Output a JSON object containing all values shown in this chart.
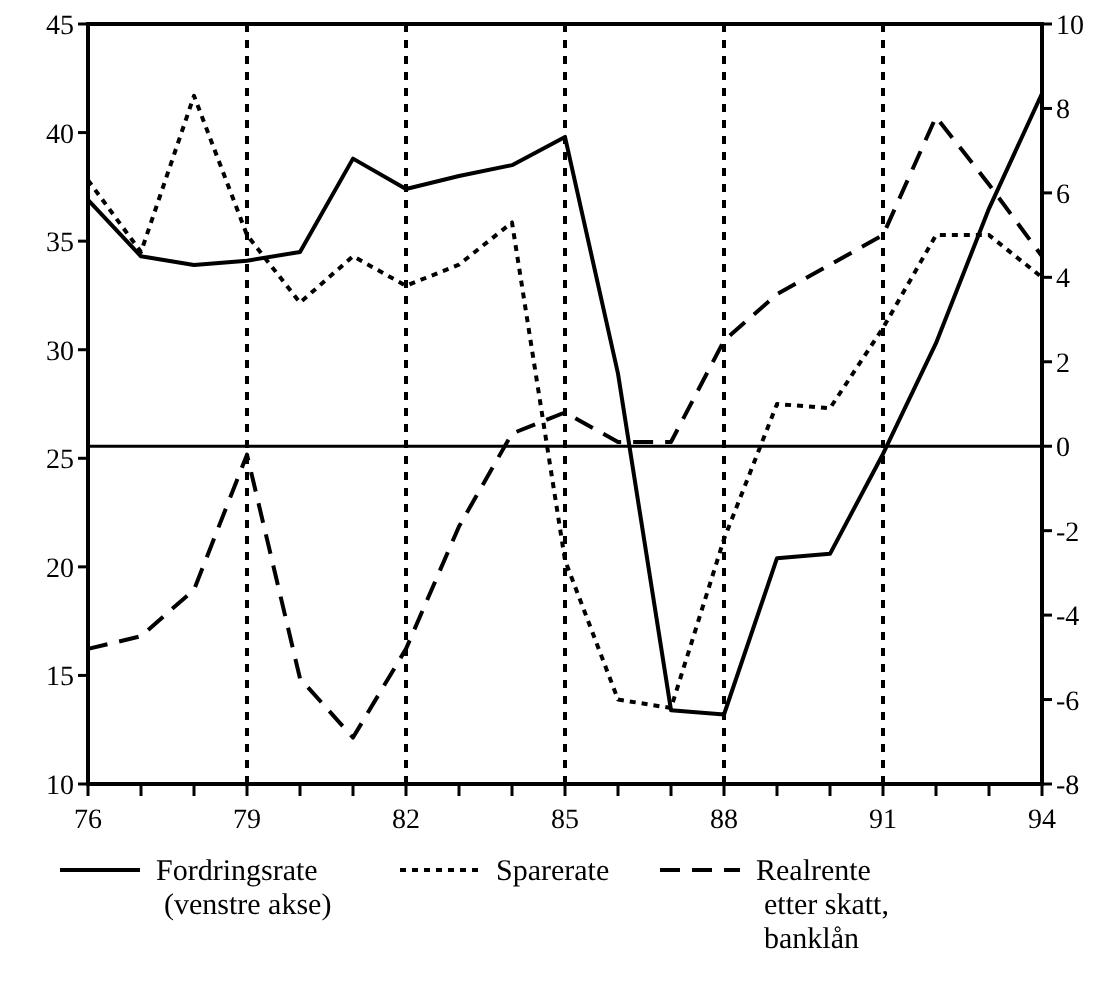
{
  "chart_data": {
    "type": "line",
    "x": [
      76,
      77,
      78,
      79,
      80,
      81,
      82,
      83,
      84,
      85,
      86,
      87,
      88,
      89,
      90,
      91,
      92,
      93,
      94
    ],
    "xlim": [
      76,
      94
    ],
    "xticks": [
      76,
      {
        "value": 77,
        "label": null
      },
      {
        "value": 78,
        "label": null
      },
      79,
      {
        "value": 80,
        "label": null
      },
      {
        "value": 81,
        "label": null
      },
      82,
      {
        "value": 83,
        "label": null
      },
      {
        "value": 84,
        "label": null
      },
      85,
      {
        "value": 86,
        "label": null
      },
      {
        "value": 87,
        "label": null
      },
      88,
      {
        "value": 89,
        "label": null
      },
      {
        "value": 90,
        "label": null
      },
      91,
      {
        "value": 92,
        "label": null
      },
      {
        "value": 93,
        "label": null
      },
      94
    ],
    "ylim": [
      10,
      45
    ],
    "yticks": [
      10,
      15,
      20,
      25,
      30,
      35,
      40,
      45
    ],
    "y2lim": [
      -8,
      10
    ],
    "y2ticks": [
      -8,
      -6,
      -4,
      -2,
      0,
      2,
      4,
      6,
      8,
      10
    ],
    "grid": "x",
    "legend": "bottom",
    "marker": "none",
    "ref_lines": [
      {
        "axis": "y2",
        "value": 0,
        "color": "#000000",
        "line_style": "solid"
      }
    ],
    "series": [
      {
        "name": "Fordringsrate (venstre akse)",
        "color": "#000000",
        "line_style": "solid",
        "axis": "y",
        "values": [
          36.9,
          34.3,
          33.9,
          34.1,
          34.5,
          38.8,
          37.4,
          38.0,
          38.5,
          39.8,
          28.9,
          13.4,
          13.2,
          20.4,
          20.6,
          25.2,
          30.3,
          36.5,
          41.8
        ]
      },
      {
        "name": "Sparerate",
        "color": "#000000",
        "line_style": "dotted",
        "axis": "y2",
        "values": [
          6.3,
          4.6,
          8.3,
          5.0,
          3.4,
          4.5,
          3.8,
          4.3,
          5.3,
          -2.7,
          -6.0,
          -6.2,
          -2.2,
          1.0,
          0.9,
          2.8,
          5.0,
          5.0,
          4.0
        ]
      },
      {
        "name": "Realrente etter skatt, banklån",
        "color": "#000000",
        "line_style": "dashed",
        "axis": "y2",
        "values": [
          -4.8,
          -4.5,
          -3.4,
          -0.2,
          -5.5,
          -6.9,
          -4.8,
          -1.9,
          0.3,
          0.8,
          0.1,
          0.1,
          2.5,
          3.6,
          4.3,
          5.0,
          7.8,
          6.2,
          4.5
        ]
      }
    ]
  }
}
